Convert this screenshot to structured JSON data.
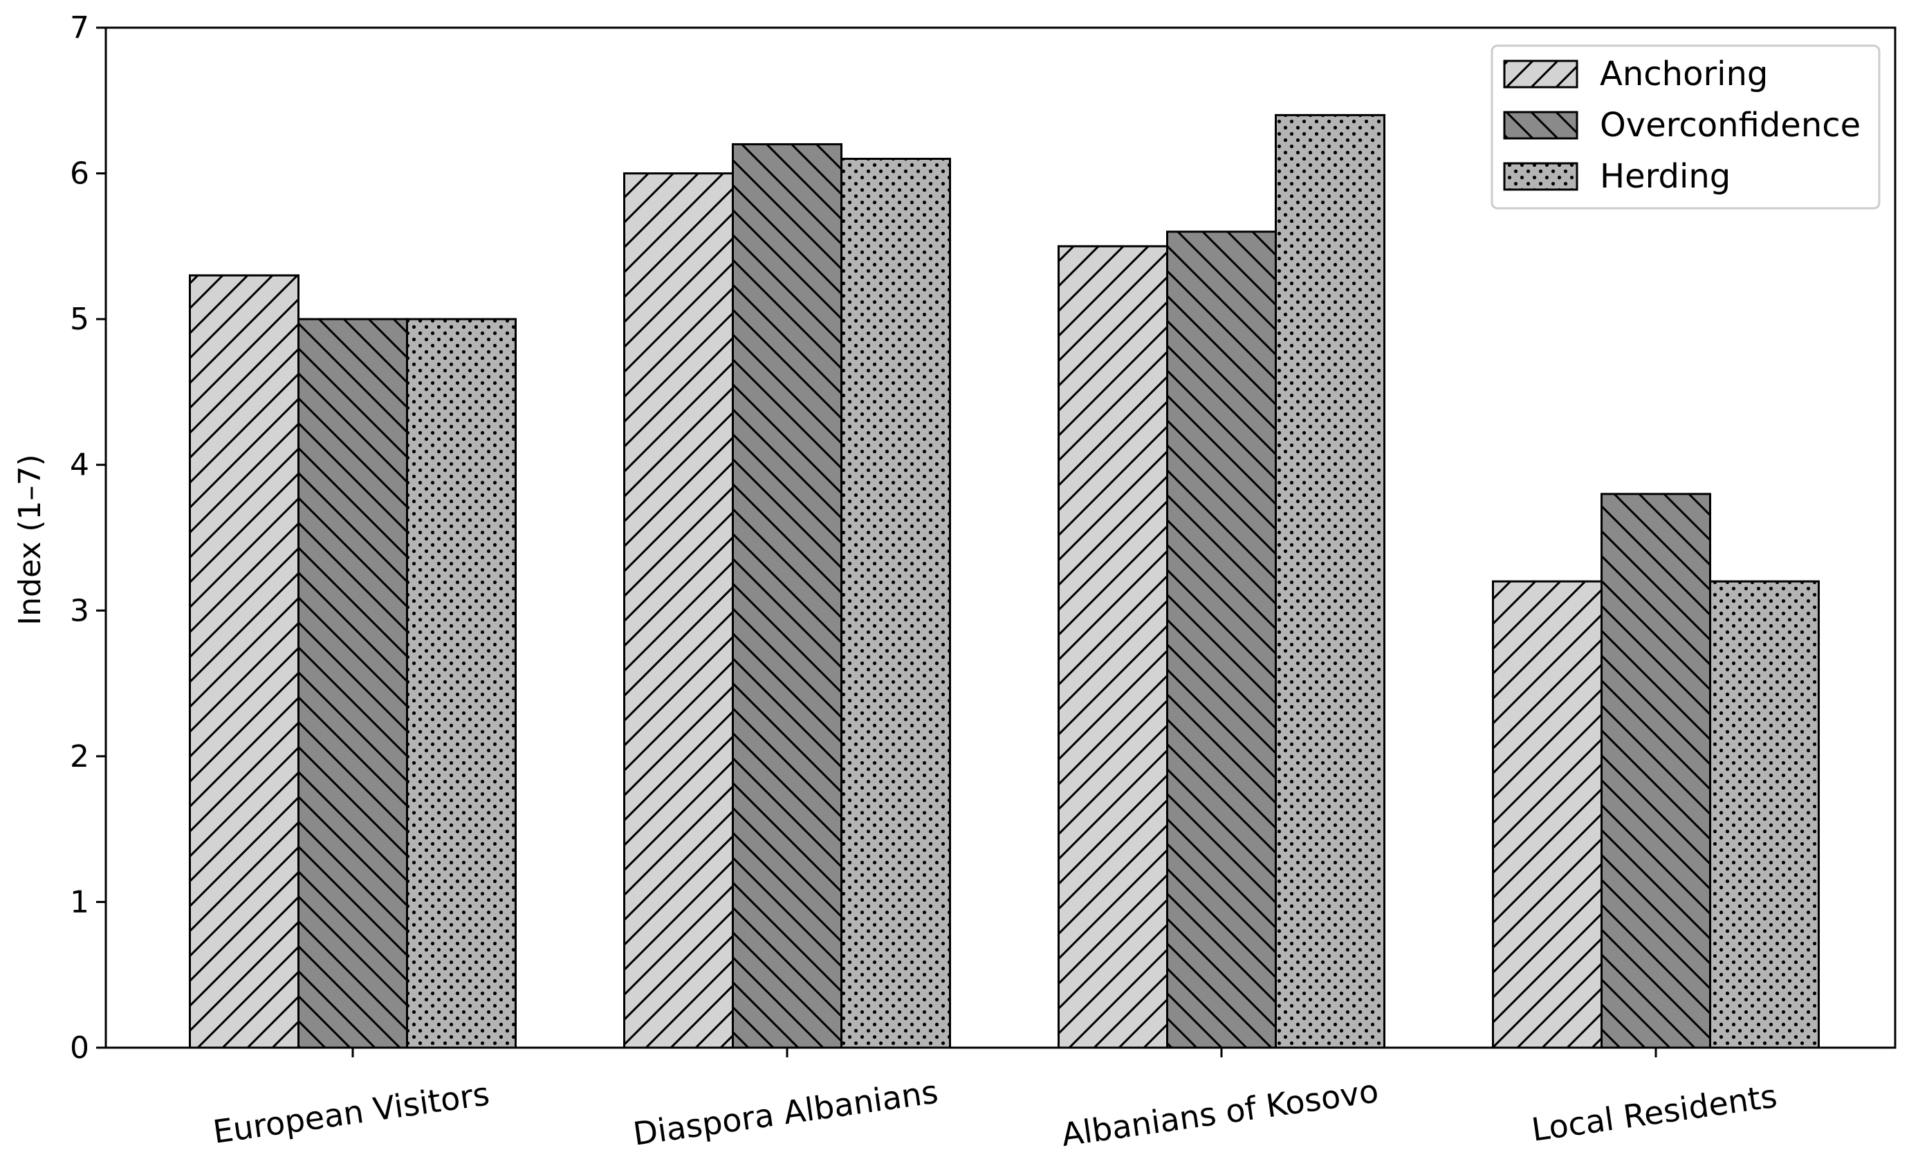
{
  "chart_data": {
    "type": "bar",
    "title": "",
    "xlabel": "",
    "ylabel": "Index (1–7)",
    "ylim": [
      0,
      7
    ],
    "yticks": [
      0,
      1,
      2,
      3,
      4,
      5,
      6,
      7
    ],
    "legend_position": "top-right",
    "grid": false,
    "categories": [
      "European Visitors",
      "Diaspora Albanians",
      "Albanians of Kosovo",
      "Local Residents"
    ],
    "series": [
      {
        "name": "Anchoring",
        "values": [
          5.3,
          6.0,
          5.5,
          3.2
        ],
        "color": "#d3d3d3",
        "pattern": "diagonal-up"
      },
      {
        "name": "Overconfidence",
        "values": [
          5.0,
          6.2,
          5.6,
          3.8
        ],
        "color": "#8a8a8a",
        "pattern": "diagonal-down"
      },
      {
        "name": "Herding",
        "values": [
          5.0,
          6.1,
          6.4,
          3.2
        ],
        "color": "#b4b4b4",
        "pattern": "dots"
      }
    ]
  }
}
